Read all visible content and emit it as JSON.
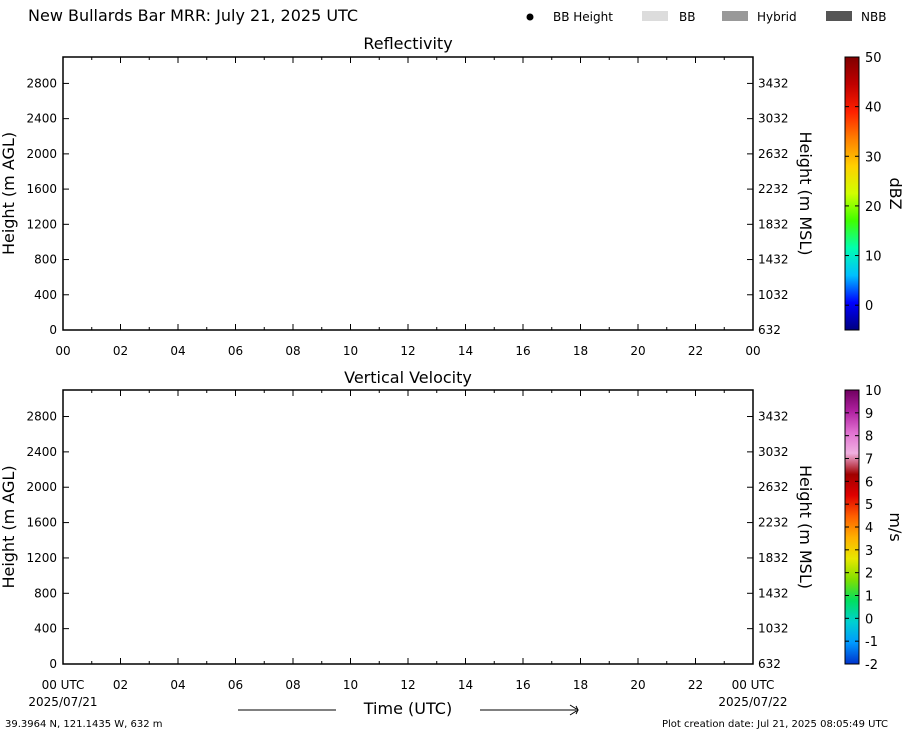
{
  "header": {
    "title": "New Bullards Bar MRR:  July 21, 2025 UTC",
    "legend": [
      {
        "label": "BB Height",
        "kind": "dot",
        "color": "#000000"
      },
      {
        "label": "BB",
        "kind": "box",
        "color": "#dcdcdc"
      },
      {
        "label": "Hybrid",
        "kind": "box",
        "color": "#999999"
      },
      {
        "label": "NBB",
        "kind": "box",
        "color": "#555555"
      }
    ]
  },
  "chart_data": [
    {
      "type": "heatmap",
      "title": "Reflectivity",
      "ylabel": "Height (m AGL)",
      "ylabel_right": "Height (m MSL)",
      "x_ticks": [
        "00",
        "02",
        "04",
        "06",
        "08",
        "10",
        "12",
        "14",
        "16",
        "18",
        "20",
        "22",
        "00"
      ],
      "y_ticks": [
        0,
        400,
        800,
        1200,
        1600,
        2000,
        2400,
        2800
      ],
      "y_ticks_right": [
        632,
        1032,
        1432,
        1832,
        2232,
        2632,
        3032,
        3432
      ],
      "xlim": [
        0,
        24
      ],
      "ylim": [
        0,
        3100
      ],
      "values": [],
      "colorbar": {
        "label": "dBZ",
        "range": [
          -5,
          50
        ],
        "ticks": [
          0,
          10,
          20,
          30,
          40,
          50
        ],
        "stops": [
          "#000080",
          "#0000ff",
          "#00bfff",
          "#00ffb0",
          "#40ff00",
          "#d0ff00",
          "#ffd000",
          "#ff8000",
          "#ff2000",
          "#c00000",
          "#800000"
        ]
      }
    },
    {
      "type": "heatmap",
      "title": "Vertical Velocity",
      "ylabel": "Height (m AGL)",
      "ylabel_right": "Height (m MSL)",
      "x_ticks": [
        "00 UTC",
        "02",
        "04",
        "06",
        "08",
        "10",
        "12",
        "14",
        "16",
        "18",
        "20",
        "22",
        "00 UTC"
      ],
      "x_dates": [
        "2025/07/21",
        "2025/07/22"
      ],
      "xlabel": "Time (UTC)",
      "y_ticks": [
        0,
        400,
        800,
        1200,
        1600,
        2000,
        2400,
        2800
      ],
      "y_ticks_right": [
        632,
        1032,
        1432,
        1832,
        2232,
        2632,
        3032,
        3432
      ],
      "xlim": [
        0,
        24
      ],
      "ylim": [
        0,
        3100
      ],
      "values": [],
      "colorbar": {
        "label": "m/s",
        "range": [
          -2,
          10
        ],
        "ticks": [
          -2,
          -1,
          0,
          1,
          2,
          3,
          4,
          5,
          6,
          7,
          8,
          9,
          10
        ],
        "stops": [
          "#0033cc",
          "#0099ff",
          "#00d0d0",
          "#00e060",
          "#80e000",
          "#e8e800",
          "#ffb000",
          "#ff6000",
          "#e00000",
          "#a00000",
          "#f0b0e0",
          "#e070d0",
          "#b020a0",
          "#700060"
        ]
      }
    }
  ],
  "footer": {
    "location": "39.3964 N, 121.1435 W, 632 m",
    "creation": "Plot creation date: Jul 21, 2025 08:05:49 UTC"
  }
}
